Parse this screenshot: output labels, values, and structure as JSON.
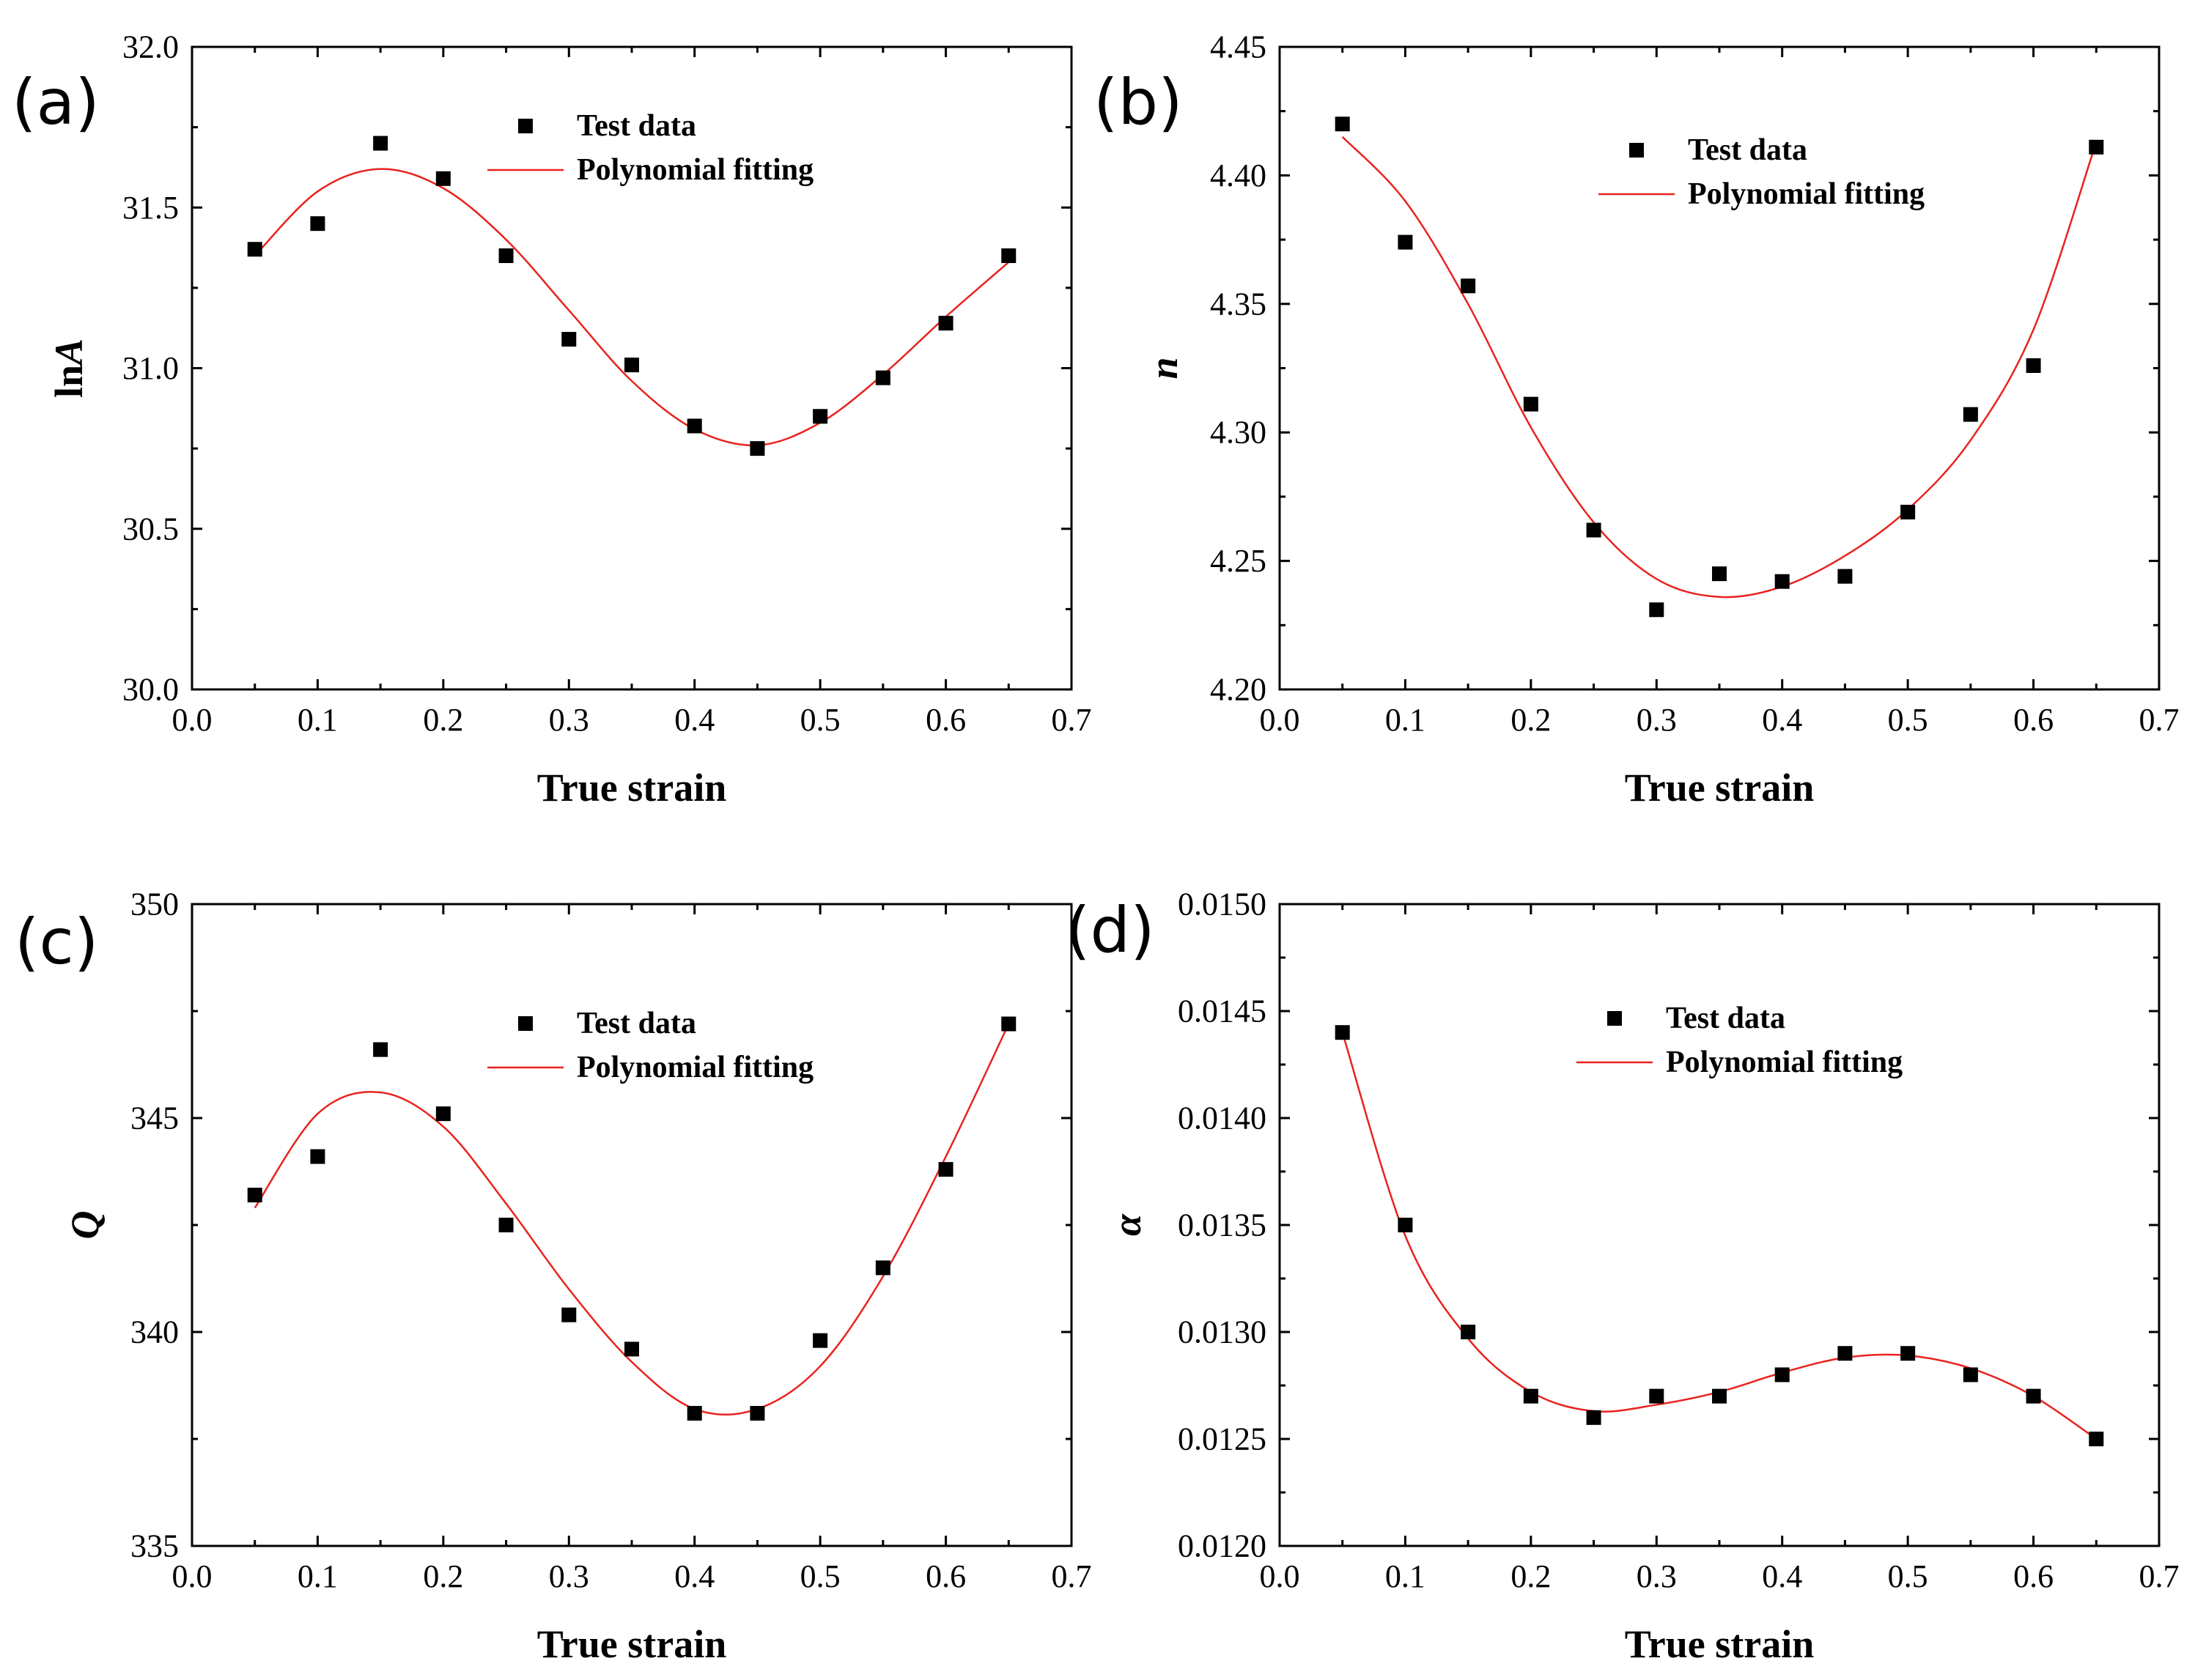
{
  "chart_data": [
    {
      "id": "a",
      "panel_label": "(a)",
      "type": "scatter",
      "xlabel": "True strain",
      "ylabel": "lnA",
      "ylabel_parts": [
        "ln",
        "A"
      ],
      "xlim": [
        0.0,
        0.7
      ],
      "ylim": [
        30.0,
        32.0
      ],
      "xticks": [
        "0.0",
        "0.1",
        "0.2",
        "0.3",
        "0.4",
        "0.5",
        "0.6",
        "0.7"
      ],
      "yticks": [
        "30.0",
        "30.5",
        "31.0",
        "31.5",
        "32.0"
      ],
      "ytick_values": [
        30.0,
        30.5,
        31.0,
        31.5,
        32.0
      ],
      "legend": {
        "markers": "Test data",
        "line": "Polynomial fitting",
        "placement": "top-center"
      },
      "series": [
        {
          "name": "Test data",
          "x": [
            0.05,
            0.1,
            0.15,
            0.2,
            0.25,
            0.3,
            0.35,
            0.4,
            0.45,
            0.5,
            0.55,
            0.6,
            0.65
          ],
          "y": [
            31.37,
            31.45,
            31.7,
            31.59,
            31.35,
            31.09,
            31.01,
            30.82,
            30.75,
            30.85,
            30.97,
            31.14,
            31.35
          ]
        },
        {
          "name": "Polynomial fitting",
          "x": [
            0.05,
            0.1,
            0.15,
            0.2,
            0.25,
            0.3,
            0.35,
            0.4,
            0.45,
            0.5,
            0.55,
            0.6,
            0.65
          ],
          "y": [
            31.35,
            31.55,
            31.62,
            31.56,
            31.4,
            31.18,
            30.96,
            30.81,
            30.76,
            30.83,
            30.98,
            31.16,
            31.33
          ]
        }
      ]
    },
    {
      "id": "b",
      "panel_label": "(b)",
      "type": "scatter",
      "xlabel": "True strain",
      "ylabel": "n",
      "ylabel_parts": [
        "",
        "n"
      ],
      "xlim": [
        0.0,
        0.7
      ],
      "ylim": [
        4.2,
        4.45
      ],
      "xticks": [
        "0.0",
        "0.1",
        "0.2",
        "0.3",
        "0.4",
        "0.5",
        "0.6",
        "0.7"
      ],
      "yticks": [
        "4.20",
        "4.25",
        "4.30",
        "4.35",
        "4.40",
        "4.45"
      ],
      "ytick_values": [
        4.2,
        4.25,
        4.3,
        4.35,
        4.4,
        4.45
      ],
      "legend": {
        "markers": "Test data",
        "line": "Polynomial fitting",
        "placement": "top-center"
      },
      "series": [
        {
          "name": "Test data",
          "x": [
            0.05,
            0.1,
            0.15,
            0.2,
            0.25,
            0.3,
            0.35,
            0.4,
            0.45,
            0.5,
            0.55,
            0.6,
            0.65
          ],
          "y": [
            4.42,
            4.374,
            4.357,
            4.311,
            4.262,
            4.231,
            4.245,
            4.242,
            4.244,
            4.269,
            4.307,
            4.326,
            4.411
          ]
        },
        {
          "name": "Polynomial fitting",
          "x": [
            0.05,
            0.1,
            0.15,
            0.2,
            0.25,
            0.3,
            0.35,
            0.4,
            0.45,
            0.5,
            0.55,
            0.6,
            0.65
          ],
          "y": [
            4.415,
            4.39,
            4.35,
            4.302,
            4.265,
            4.243,
            4.236,
            4.24,
            4.252,
            4.27,
            4.297,
            4.34,
            4.413
          ]
        }
      ]
    },
    {
      "id": "c",
      "panel_label": "(c)",
      "type": "scatter",
      "xlabel": "True strain",
      "ylabel": "Q",
      "ylabel_parts": [
        "",
        "Q"
      ],
      "xlim": [
        0.0,
        0.7
      ],
      "ylim": [
        335,
        350
      ],
      "xticks": [
        "0.0",
        "0.1",
        "0.2",
        "0.3",
        "0.4",
        "0.5",
        "0.6",
        "0.7"
      ],
      "yticks": [
        "335",
        "340",
        "345",
        "350"
      ],
      "ytick_values": [
        335,
        340,
        345,
        350
      ],
      "legend": {
        "markers": "Test data",
        "line": "Polynomial fitting",
        "placement": "top-center"
      },
      "series": [
        {
          "name": "Test data",
          "x": [
            0.05,
            0.1,
            0.15,
            0.2,
            0.25,
            0.3,
            0.35,
            0.4,
            0.45,
            0.5,
            0.55,
            0.6,
            0.65
          ],
          "y": [
            343.2,
            344.1,
            346.6,
            345.1,
            342.5,
            340.4,
            339.6,
            338.1,
            338.1,
            339.8,
            341.5,
            343.8,
            347.2
          ]
        },
        {
          "name": "Polynomial fitting",
          "x": [
            0.05,
            0.1,
            0.15,
            0.2,
            0.25,
            0.3,
            0.35,
            0.4,
            0.45,
            0.5,
            0.55,
            0.6,
            0.65
          ],
          "y": [
            342.9,
            345.1,
            345.6,
            344.8,
            343.0,
            341.0,
            339.3,
            338.2,
            338.2,
            339.2,
            341.3,
            344.1,
            347.2
          ]
        }
      ]
    },
    {
      "id": "d",
      "panel_label": "(d)",
      "type": "scatter",
      "xlabel": "True strain",
      "ylabel": "α",
      "ylabel_parts": [
        "",
        "α"
      ],
      "xlim": [
        0.0,
        0.7
      ],
      "ylim": [
        0.012,
        0.015
      ],
      "xticks": [
        "0.0",
        "0.1",
        "0.2",
        "0.3",
        "0.4",
        "0.5",
        "0.6",
        "0.7"
      ],
      "yticks": [
        "0.0120",
        "0.0125",
        "0.0130",
        "0.0135",
        "0.0140",
        "0.0145",
        "0.0150"
      ],
      "ytick_values": [
        0.012,
        0.0125,
        0.013,
        0.0135,
        0.014,
        0.0145,
        0.015
      ],
      "legend": {
        "markers": "Test data",
        "line": "Polynomial fitting",
        "placement": "top-center"
      },
      "series": [
        {
          "name": "Test data",
          "x": [
            0.05,
            0.1,
            0.15,
            0.2,
            0.25,
            0.3,
            0.35,
            0.4,
            0.45,
            0.5,
            0.55,
            0.6,
            0.65
          ],
          "y": [
            0.0144,
            0.0135,
            0.013,
            0.0127,
            0.0126,
            0.0127,
            0.0127,
            0.0128,
            0.0129,
            0.0129,
            0.0128,
            0.0127,
            0.0125
          ]
        },
        {
          "name": "Polynomial fitting",
          "x": [
            0.05,
            0.1,
            0.15,
            0.2,
            0.25,
            0.3,
            0.35,
            0.4,
            0.45,
            0.5,
            0.55,
            0.6,
            0.65
          ],
          "y": [
            0.0144,
            0.01345,
            0.01297,
            0.01272,
            0.01263,
            0.01266,
            0.01272,
            0.01281,
            0.01288,
            0.01289,
            0.01283,
            0.0127,
            0.0125
          ]
        }
      ]
    }
  ]
}
